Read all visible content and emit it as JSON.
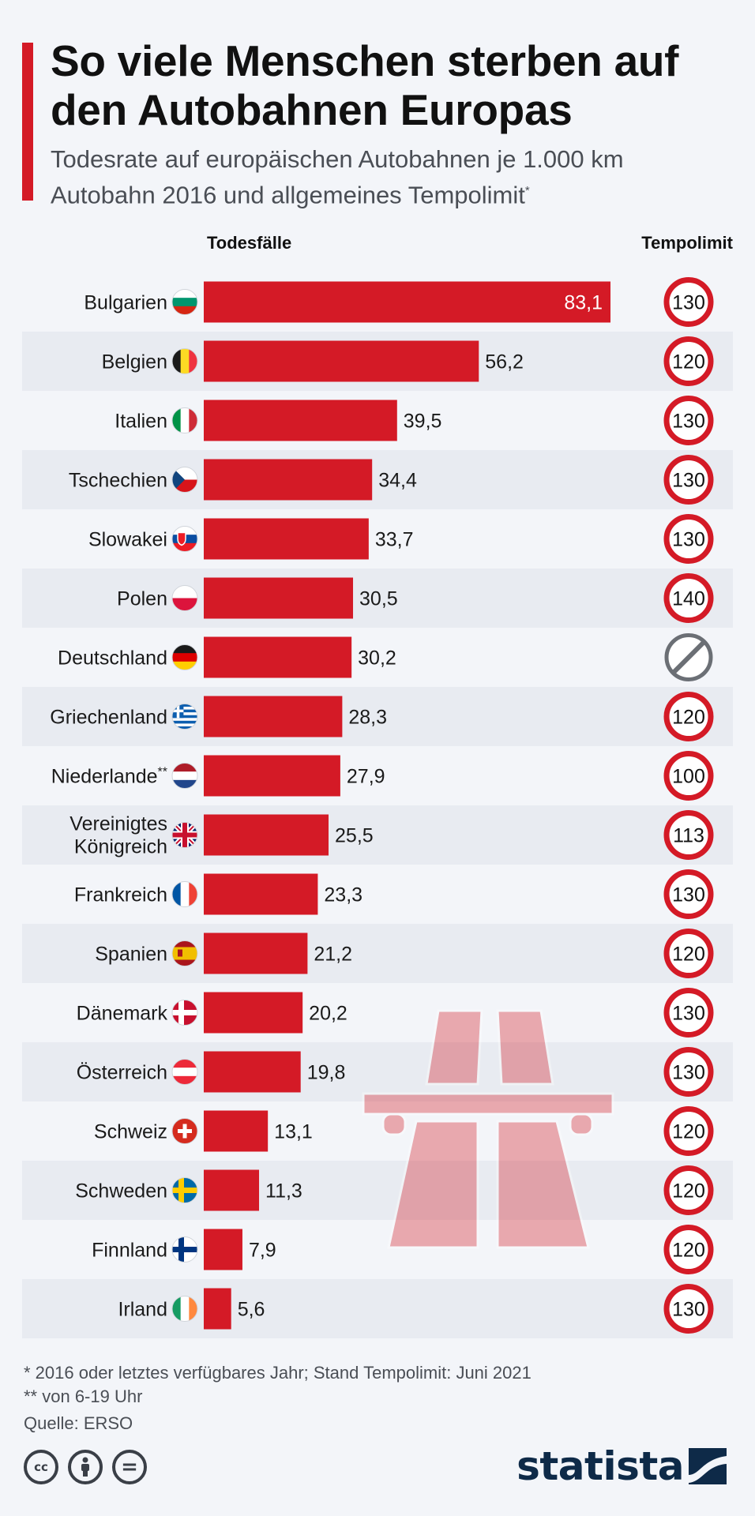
{
  "title": "So viele Menschen sterben auf den Autobahnen Europas",
  "subtitle": "Todesrate auf europäischen Autobahnen je 1.000 km Autobahn 2016 und allgemeines Tempolimit",
  "subtitle_note_mark": "*",
  "colors": {
    "accent": "#d41a26",
    "row_alt": "#e8ebf1",
    "text": "#1a1a1a",
    "no_limit": "#6b6f75"
  },
  "chart_data": {
    "type": "bar",
    "orientation": "horizontal",
    "column_headers": {
      "deaths": "Todesfälle",
      "limit": "Tempolimit"
    },
    "categories": [
      "Bulgarien",
      "Belgien",
      "Italien",
      "Tschechien",
      "Slowakei",
      "Polen",
      "Deutschland",
      "Griechenland",
      "Niederlande**",
      "Vereinigtes Königreich",
      "Frankreich",
      "Spanien",
      "Dänemark",
      "Österreich",
      "Schweiz",
      "Schweden",
      "Finnland",
      "Irland"
    ],
    "flags": [
      "bulgaria",
      "belgium",
      "italy",
      "czechia",
      "slovakia",
      "poland",
      "germany",
      "greece",
      "netherlands",
      "united-kingdom",
      "france",
      "spain",
      "denmark",
      "austria",
      "switzerland",
      "sweden",
      "finland",
      "ireland"
    ],
    "values": [
      83.1,
      56.2,
      39.5,
      34.4,
      33.7,
      30.5,
      30.2,
      28.3,
      27.9,
      25.5,
      23.3,
      21.2,
      20.2,
      19.8,
      13.1,
      11.3,
      7.9,
      5.6
    ],
    "value_labels": [
      "83,1",
      "56,2",
      "39,5",
      "34,4",
      "33,7",
      "30,5",
      "30,2",
      "28,3",
      "27,9",
      "25,5",
      "23,3",
      "21,2",
      "20,2",
      "19,8",
      "13,1",
      "11,3",
      "7,9",
      "5,6"
    ],
    "speed_limits": [
      "130",
      "120",
      "130",
      "130",
      "130",
      "140",
      "",
      "120",
      "100",
      "113",
      "130",
      "120",
      "130",
      "130",
      "120",
      "120",
      "120",
      "130"
    ],
    "no_limit_sign": "end-of-restrictions-sign",
    "decoration_icon": "motorway-sign-icon",
    "xlim": [
      0,
      83.1
    ]
  },
  "footnotes": {
    "note1": "*   2016 oder letztes verfügbares Jahr; Stand Tempolimit: Juni 2021",
    "note2": "** von 6-19 Uhr",
    "source": "Quelle: ERSO"
  },
  "license_icons": [
    "cc-icon",
    "attribution-icon",
    "no-derivatives-icon"
  ],
  "brand": "statista"
}
